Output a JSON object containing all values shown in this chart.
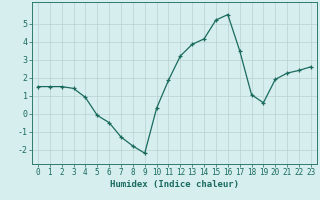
{
  "x": [
    0,
    1,
    2,
    3,
    4,
    5,
    6,
    7,
    8,
    9,
    10,
    11,
    12,
    13,
    14,
    15,
    16,
    17,
    18,
    19,
    20,
    21,
    22,
    23
  ],
  "y": [
    1.5,
    1.5,
    1.5,
    1.4,
    0.9,
    -0.1,
    -0.5,
    -1.3,
    -1.8,
    -2.2,
    0.3,
    1.85,
    3.2,
    3.85,
    4.15,
    5.2,
    5.5,
    3.5,
    1.05,
    0.6,
    1.9,
    2.25,
    2.4,
    2.6
  ],
  "line_color": "#1a6b5e",
  "marker": "+",
  "markersize": 3,
  "linewidth": 0.9,
  "xlabel": "Humidex (Indice chaleur)",
  "xlim": [
    -0.5,
    23.5
  ],
  "ylim": [
    -2.8,
    6.2
  ],
  "yticks": [
    -2,
    -1,
    0,
    1,
    2,
    3,
    4,
    5
  ],
  "xticks": [
    0,
    1,
    2,
    3,
    4,
    5,
    6,
    7,
    8,
    9,
    10,
    11,
    12,
    13,
    14,
    15,
    16,
    17,
    18,
    19,
    20,
    21,
    22,
    23
  ],
  "bg_color": "#d6eeee",
  "grid_color": "#b8d0d0",
  "spine_color": "#2e7b6e",
  "tick_label_color": "#1a6b5e",
  "xlabel_color": "#1a6b5e",
  "xlabel_fontsize": 6.5,
  "tick_fontsize": 5.5
}
